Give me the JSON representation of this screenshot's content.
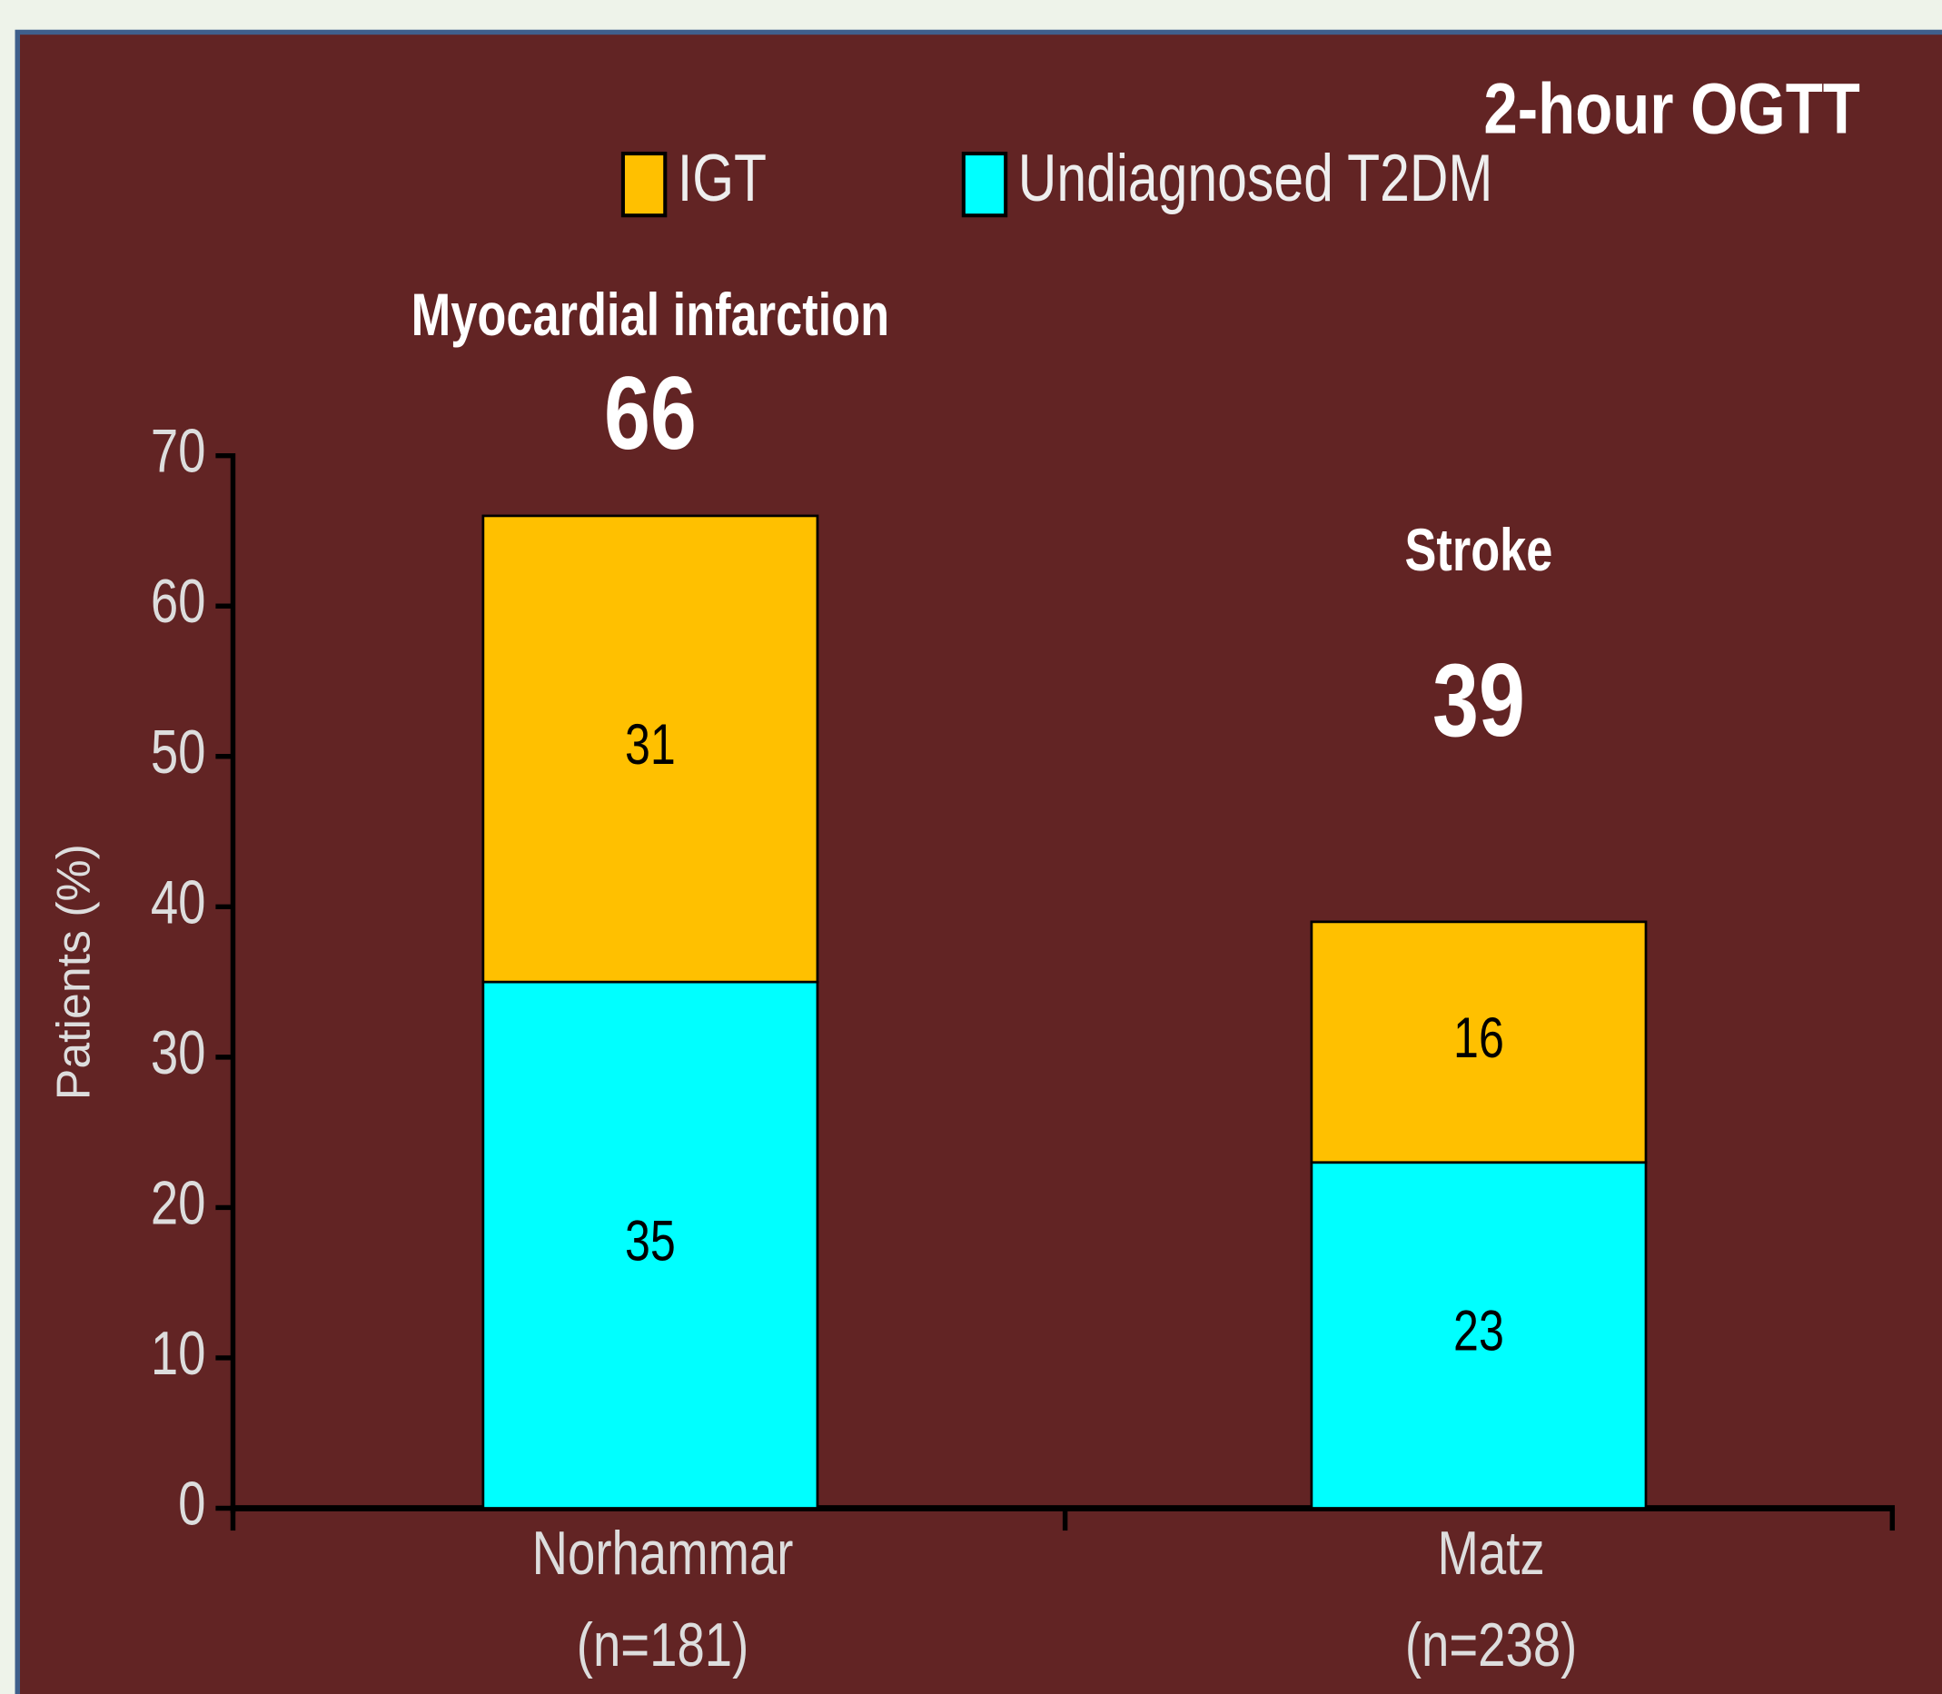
{
  "chart_data": {
    "type": "stacked-bar",
    "title": "2-hour OGTT",
    "y_label": "Patients (%)",
    "categories": [
      "Norhammar",
      "Matz"
    ],
    "category_notes": [
      "(n=181)",
      "(n=238)"
    ],
    "group_labels": [
      "Myocardial infarction",
      "Stroke"
    ],
    "totals": [
      66,
      39
    ],
    "series": [
      {
        "name": "IGT",
        "color": "#ffc000",
        "values": [
          31,
          16
        ]
      },
      {
        "name": "Undiagnosed T2DM",
        "color": "#00ffff",
        "values": [
          35,
          23
        ]
      }
    ],
    "ylim": [
      0,
      70
    ],
    "yticks": [
      0,
      10,
      20,
      30,
      40,
      50,
      60,
      70
    ]
  }
}
